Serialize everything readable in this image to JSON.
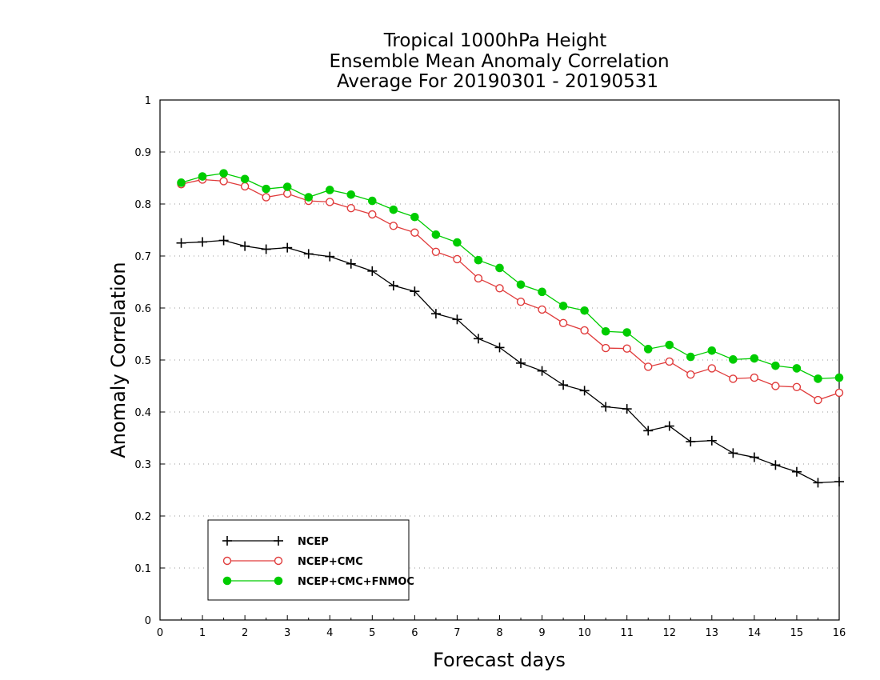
{
  "chart_data": {
    "type": "line",
    "title": [
      "Tropical 1000hPa Height",
      "Ensemble Mean Anomaly Correlation",
      "Average For 20190301 - 20190531"
    ],
    "xlabel": "Forecast days",
    "ylabel": "Anomaly Correlation",
    "xlim": [
      0,
      16
    ],
    "ylim": [
      0,
      1
    ],
    "x_ticks": [
      "0",
      "1",
      "2",
      "3",
      "4",
      "5",
      "6",
      "7",
      "8",
      "9",
      "10",
      "11",
      "12",
      "13",
      "14",
      "15",
      "16"
    ],
    "y_ticks": [
      "0",
      "0.1",
      "0.2",
      "0.3",
      "0.4",
      "0.5",
      "0.6",
      "0.7",
      "0.8",
      "0.9",
      "1"
    ],
    "grid": "horizontal dotted",
    "legend_position": "bottom-left",
    "x": [
      0.5,
      1,
      1.5,
      2,
      2.5,
      3,
      3.5,
      4,
      4.5,
      5,
      5.5,
      6,
      6.5,
      7,
      7.5,
      8,
      8.5,
      9,
      9.5,
      10,
      10.5,
      11,
      11.5,
      12,
      12.5,
      13,
      13.5,
      14,
      14.5,
      15,
      15.5,
      16
    ],
    "series": [
      {
        "name": "NCEP",
        "color": "#000000",
        "marker": "plus",
        "values": [
          0.725,
          0.727,
          0.73,
          0.719,
          0.713,
          0.716,
          0.704,
          0.699,
          0.685,
          0.671,
          0.643,
          0.632,
          0.589,
          0.578,
          0.541,
          0.524,
          0.494,
          0.479,
          0.452,
          0.441,
          0.41,
          0.406,
          0.364,
          0.373,
          0.343,
          0.345,
          0.321,
          0.313,
          0.298,
          0.285,
          0.264,
          0.266
        ]
      },
      {
        "name": "NCEP+CMC",
        "color": "#e03c3c",
        "marker": "open-circle",
        "values": [
          0.838,
          0.847,
          0.844,
          0.834,
          0.813,
          0.82,
          0.806,
          0.804,
          0.792,
          0.78,
          0.758,
          0.745,
          0.708,
          0.694,
          0.657,
          0.638,
          0.612,
          0.597,
          0.571,
          0.557,
          0.523,
          0.522,
          0.487,
          0.497,
          0.472,
          0.484,
          0.464,
          0.466,
          0.45,
          0.448,
          0.423,
          0.437
        ]
      },
      {
        "name": "NCEP+CMC+FNMOC",
        "color": "#00cc00",
        "marker": "filled-circle",
        "values": [
          0.841,
          0.853,
          0.859,
          0.848,
          0.829,
          0.833,
          0.813,
          0.827,
          0.818,
          0.806,
          0.789,
          0.775,
          0.741,
          0.726,
          0.692,
          0.677,
          0.645,
          0.631,
          0.604,
          0.595,
          0.555,
          0.553,
          0.521,
          0.529,
          0.506,
          0.518,
          0.501,
          0.503,
          0.489,
          0.484,
          0.464,
          0.466
        ]
      }
    ]
  }
}
